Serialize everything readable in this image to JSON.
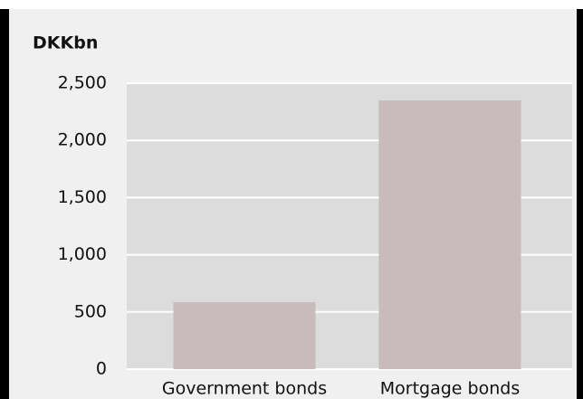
{
  "chart_data": {
    "type": "bar",
    "y_axis_label": "DKKbn",
    "categories": [
      "Government bonds",
      "Mortgage bonds"
    ],
    "values": [
      585,
      2350
    ],
    "color": "#c9babd",
    "ylim": [
      0,
      2500
    ],
    "yticks": [
      0,
      500,
      {
        "value": 1000,
        "label": "1,000"
      },
      {
        "value": 1500,
        "label": "1,500"
      },
      {
        "value": 2000,
        "label": "2,000"
      },
      {
        "value": 2500,
        "label": "2,500"
      }
    ],
    "grid": true
  }
}
